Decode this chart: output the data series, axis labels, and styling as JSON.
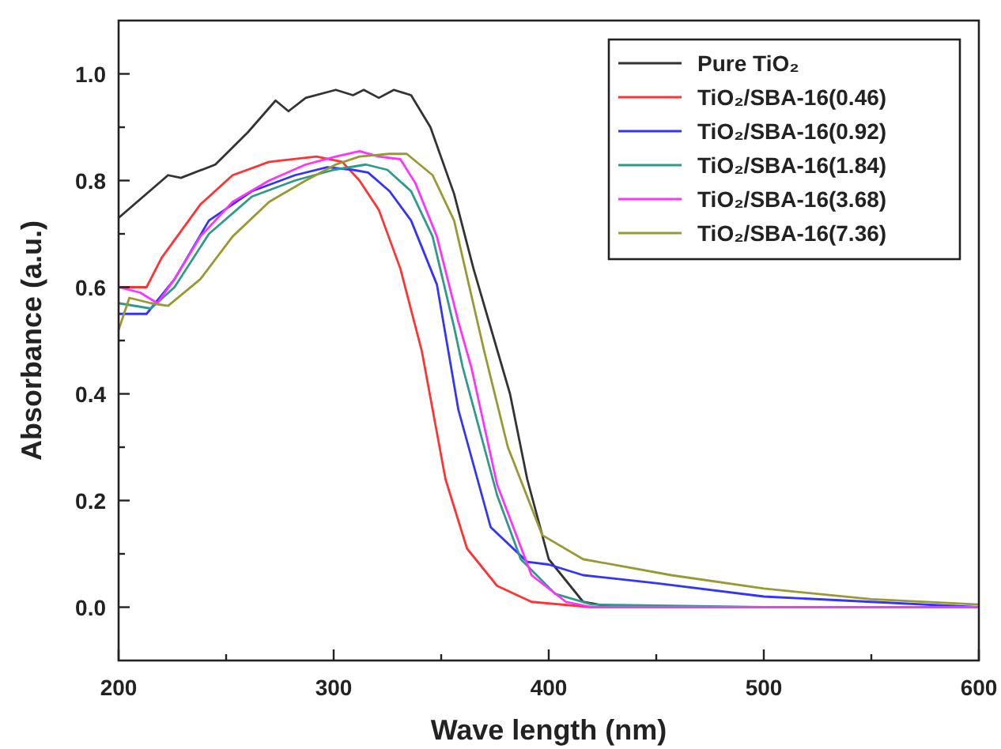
{
  "chart_data": {
    "type": "line",
    "xlabel": "Wave length (nm)",
    "ylabel": "Absorbance (a.u.)",
    "xlim": [
      200,
      600
    ],
    "ylim": [
      -0.1,
      1.1
    ],
    "xticks": [
      200,
      {
        "value": 250,
        "label": null
      },
      300,
      {
        "value": 350,
        "label": null
      },
      400,
      {
        "value": 450,
        "label": null
      },
      500,
      {
        "value": 550,
        "label": null
      },
      600
    ],
    "yticks": [
      {
        "value": 0,
        "label": "0.0"
      },
      {
        "value": 0.1,
        "label": null
      },
      0.2,
      {
        "value": 0.3,
        "label": null
      },
      0.4,
      {
        "value": 0.5,
        "label": null
      },
      0.6,
      {
        "value": 0.7,
        "label": null
      },
      0.8,
      {
        "value": 0.9,
        "label": null
      },
      {
        "value": 1,
        "label": "1.0"
      }
    ],
    "legend": "top right",
    "grid": false,
    "marker": "none",
    "line_style": "solid",
    "series": [
      {
        "name": "Pure TiO₂",
        "color": "#333333",
        "x": [
          200,
          223,
          229,
          245,
          260,
          273,
          279,
          287,
          301,
          309,
          314,
          321,
          328,
          336,
          345,
          356,
          365,
          382,
          390,
          400,
          416,
          430,
          500,
          600
        ],
        "values": [
          0.73,
          0.81,
          0.805,
          0.83,
          0.89,
          0.95,
          0.93,
          0.955,
          0.97,
          0.96,
          0.97,
          0.955,
          0.97,
          0.96,
          0.9,
          0.775,
          0.635,
          0.4,
          0.24,
          0.09,
          0.01,
          0.0,
          0.0,
          0.0
        ]
      },
      {
        "name": "TiO₂/SBA-16(0.46)",
        "color": "#ff3333",
        "x": [
          200,
          213,
          220,
          238,
          253,
          270,
          292,
          304,
          312,
          321,
          331,
          341,
          352,
          362,
          376,
          392,
          420,
          500,
          600
        ],
        "values": [
          0.6,
          0.6,
          0.655,
          0.755,
          0.81,
          0.835,
          0.845,
          0.835,
          0.8,
          0.745,
          0.635,
          0.48,
          0.24,
          0.11,
          0.04,
          0.01,
          0.0,
          0.0,
          0.0
        ]
      },
      {
        "name": "TiO₂/SBA-16(0.92)",
        "color": "#3333ff",
        "x": [
          200,
          213,
          226,
          242,
          262,
          282,
          297,
          309,
          316,
          326,
          336,
          348,
          358,
          373,
          390,
          400,
          416,
          450,
          500,
          550,
          600
        ],
        "values": [
          0.55,
          0.55,
          0.615,
          0.725,
          0.78,
          0.81,
          0.825,
          0.82,
          0.815,
          0.78,
          0.725,
          0.605,
          0.37,
          0.15,
          0.085,
          0.08,
          0.06,
          0.045,
          0.02,
          0.01,
          0.0
        ]
      },
      {
        "name": "TiO₂/SBA-16(1.84)",
        "color": "#2e9a8c",
        "x": [
          200,
          215,
          226,
          242,
          262,
          282,
          300,
          315,
          325,
          336,
          346,
          356,
          360,
          376,
          387,
          403,
          420,
          500,
          600
        ],
        "values": [
          0.57,
          0.56,
          0.6,
          0.7,
          0.77,
          0.8,
          0.82,
          0.83,
          0.82,
          0.78,
          0.695,
          0.525,
          0.45,
          0.21,
          0.09,
          0.025,
          0.005,
          0.0,
          0.0
        ]
      },
      {
        "name": "TiO₂/SBA-16(3.68)",
        "color": "#ff33ff",
        "x": [
          200,
          210,
          218,
          226,
          238,
          253,
          270,
          287,
          301,
          312,
          321,
          331,
          338,
          348,
          358,
          364,
          376,
          392,
          408,
          420,
          500,
          600
        ],
        "values": [
          0.6,
          0.59,
          0.57,
          0.615,
          0.695,
          0.76,
          0.8,
          0.83,
          0.845,
          0.855,
          0.845,
          0.84,
          0.795,
          0.695,
          0.535,
          0.45,
          0.23,
          0.06,
          0.01,
          0.0,
          0.0,
          0.0
        ]
      },
      {
        "name": "TiO₂/SBA-16(7.36)",
        "color": "#999933",
        "x": [
          200,
          205,
          215,
          223,
          238,
          253,
          270,
          287,
          301,
          312,
          326,
          334,
          346,
          356,
          370,
          381,
          397,
          416,
          457,
          500,
          550,
          600
        ],
        "values": [
          0.52,
          0.58,
          0.57,
          0.565,
          0.615,
          0.695,
          0.76,
          0.8,
          0.83,
          0.845,
          0.85,
          0.85,
          0.81,
          0.725,
          0.48,
          0.3,
          0.135,
          0.09,
          0.06,
          0.035,
          0.015,
          0.005
        ]
      }
    ]
  }
}
